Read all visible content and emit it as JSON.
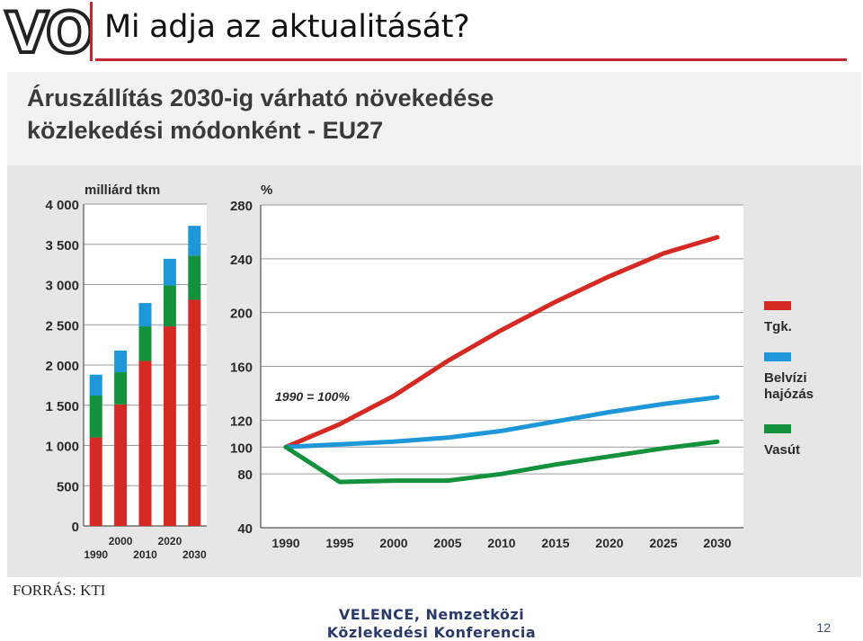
{
  "slide": {
    "logo": "VO",
    "title": "Mi adja az aktualitását?",
    "source": "FORRÁS: KTI",
    "footer_line1": "VELENCE, Nemzetközi",
    "footer_line2": "Közlekedési Konferencia",
    "page_number": "12"
  },
  "colors": {
    "accent": "#c0262d",
    "truck": "#d42a23",
    "waterway": "#1e97d8",
    "rail": "#14913c",
    "figure_bg": "#e6e6e6",
    "footer": "#2b3a6b"
  },
  "chart_data": [
    {
      "type": "bar",
      "stacked": true,
      "title": "Áruszállítás 2030-ig várható növekedése közlekedési módonként - EU27",
      "title_lines": [
        "Áruszállítás 2030-ig várható növekedése",
        "közlekedési módonként - EU27"
      ],
      "ylabel": "milliárd tkm",
      "ylim": [
        0,
        4000
      ],
      "yticks": [
        0,
        500,
        1000,
        1500,
        2000,
        2500,
        3000,
        3500,
        4000
      ],
      "ytick_labels": [
        "0",
        "500",
        "1 000",
        "1 500",
        "2 000",
        "2 500",
        "3 000",
        "3 500",
        "4 000"
      ],
      "categories": [
        "1990",
        "2000",
        "2010",
        "2020",
        "2030"
      ],
      "grid": true,
      "series": [
        {
          "name": "Tgk.",
          "color": "#d42a23",
          "values": [
            1100,
            1510,
            2050,
            2480,
            2810
          ]
        },
        {
          "name": "Vasút",
          "color": "#14913c",
          "values": [
            520,
            400,
            430,
            510,
            550
          ]
        },
        {
          "name": "Belvízi hajózás",
          "color": "#1e97d8",
          "values": [
            260,
            270,
            290,
            330,
            370
          ]
        }
      ]
    },
    {
      "type": "line",
      "ylabel": "%",
      "ylim": [
        40,
        280
      ],
      "yticks": [
        40,
        80,
        100,
        120,
        160,
        200,
        240,
        280
      ],
      "x": [
        1990,
        1995,
        2000,
        2005,
        2010,
        2015,
        2020,
        2025,
        2030
      ],
      "annotation": "1990 = 100%",
      "legend_position": "right",
      "grid": true,
      "series": [
        {
          "name": "Tgk.",
          "color": "#d42a23",
          "values": [
            100,
            117,
            138,
            164,
            187,
            208,
            227,
            244,
            256
          ]
        },
        {
          "name": "Belvízi hajózás",
          "color": "#1e97d8",
          "values": [
            100,
            102,
            104,
            107,
            112,
            119,
            126,
            132,
            137
          ]
        },
        {
          "name": "Vasút",
          "color": "#14913c",
          "values": [
            100,
            74,
            75,
            75,
            80,
            87,
            93,
            99,
            104
          ]
        }
      ],
      "legend": [
        {
          "label_lines": [
            "Tgk."
          ],
          "color": "#d42a23"
        },
        {
          "label_lines": [
            "Belvízi",
            "hajózás"
          ],
          "color": "#1e97d8"
        },
        {
          "label_lines": [
            "Vasút"
          ],
          "color": "#14913c"
        }
      ]
    }
  ]
}
